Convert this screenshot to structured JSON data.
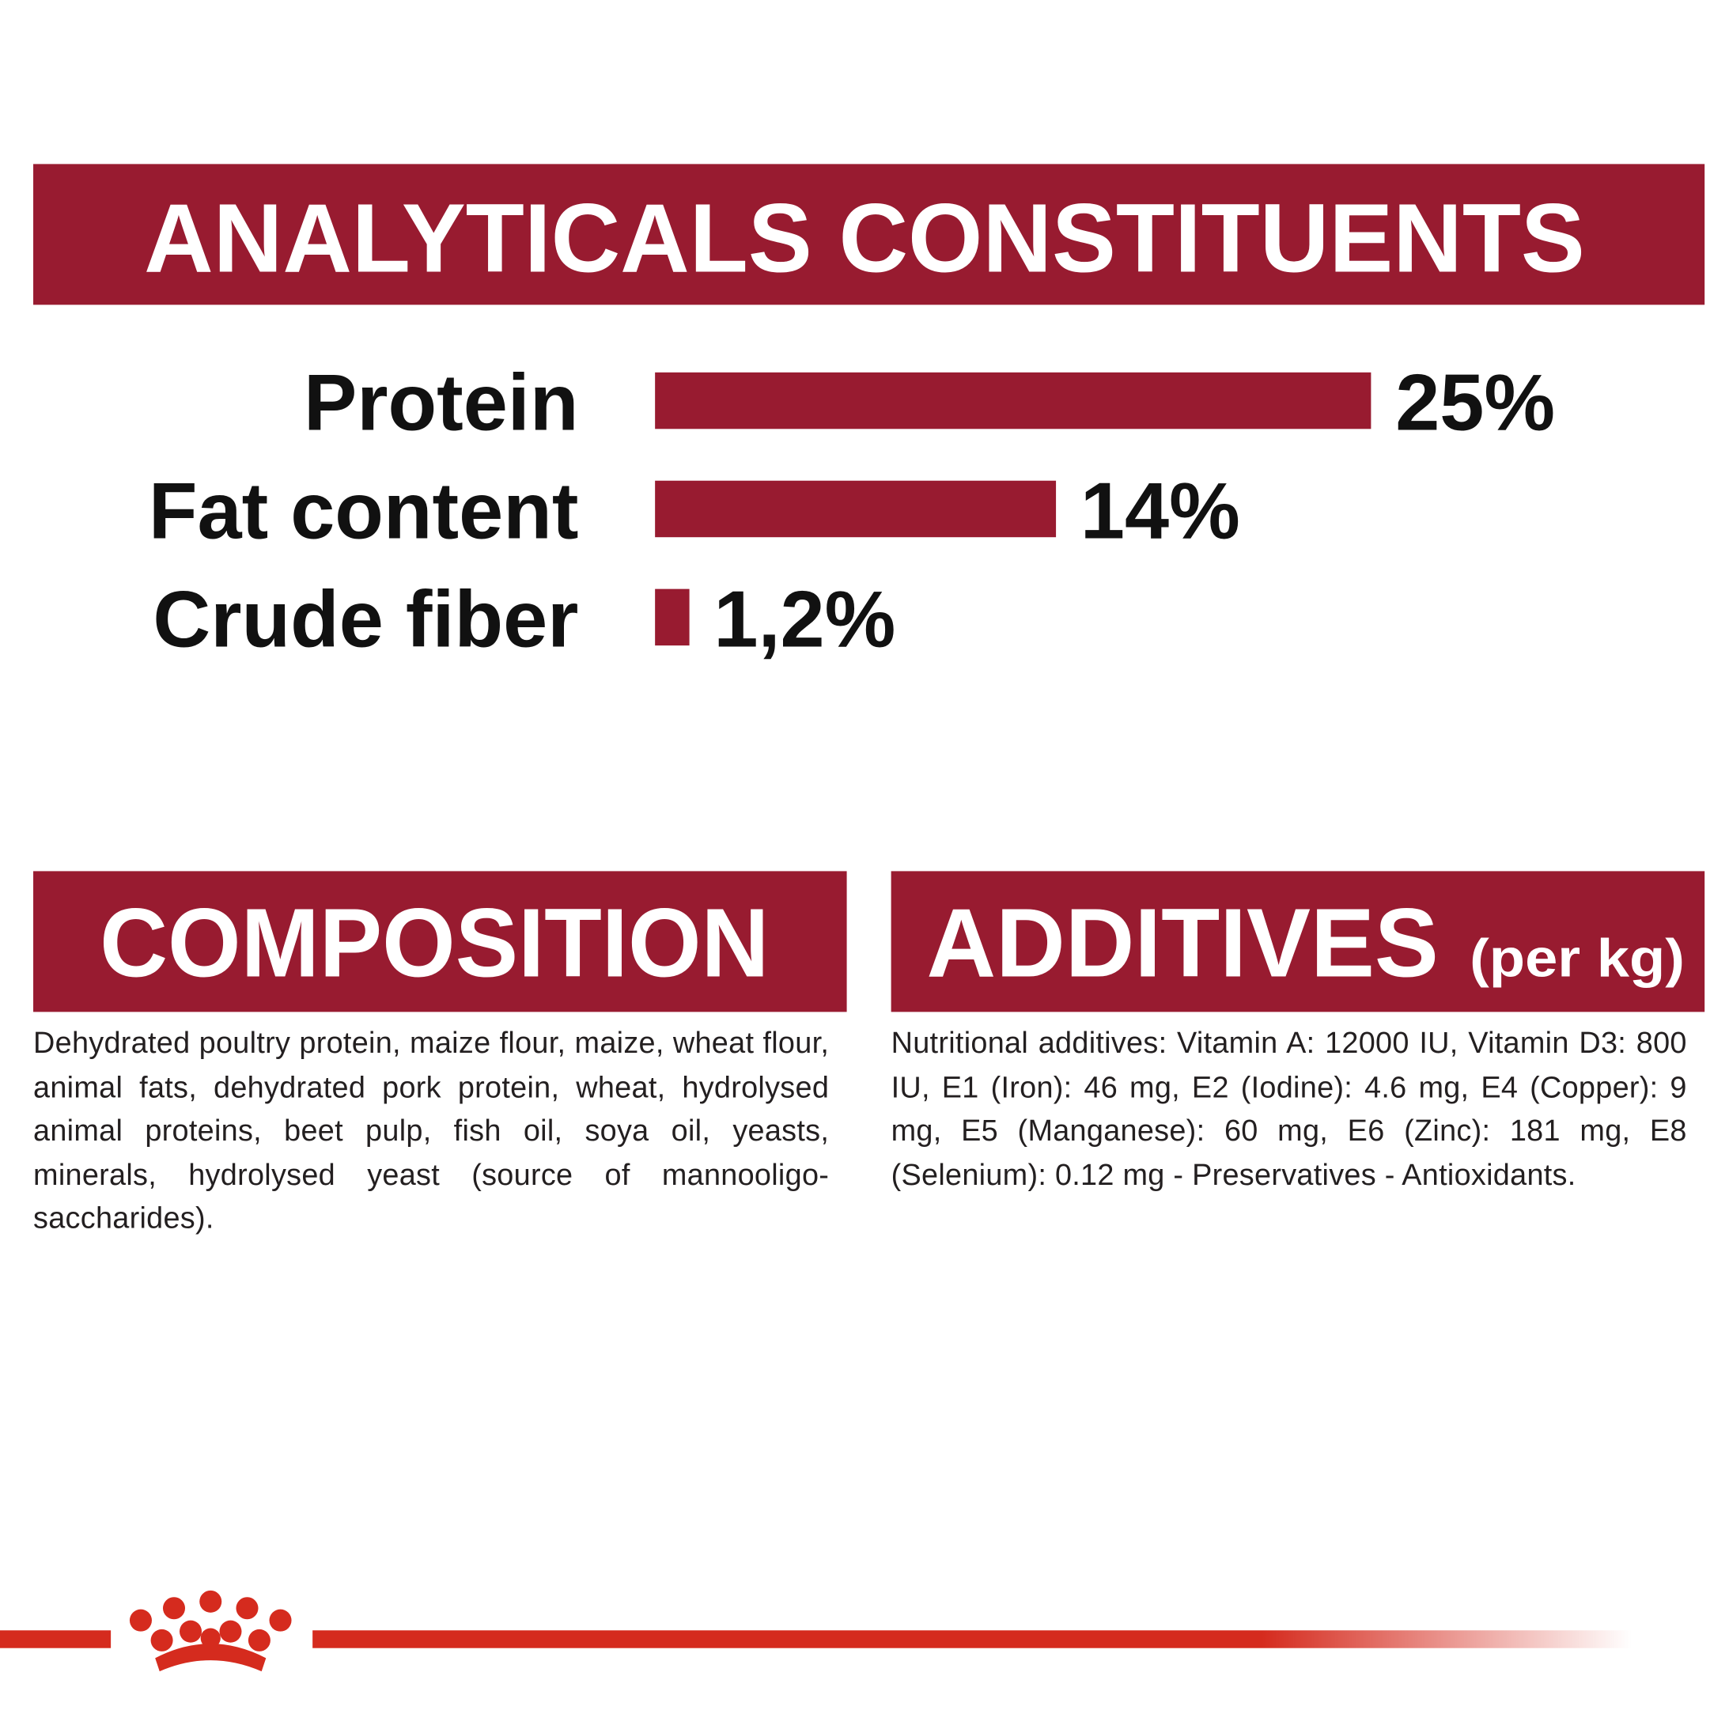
{
  "header": {
    "title": "ANALYTICALS CONSTITUENTS"
  },
  "chart_data": {
    "type": "bar",
    "orientation": "horizontal",
    "color": "#981b30",
    "categories": [
      "Protein",
      "Fat content",
      "Crude fiber"
    ],
    "values": [
      25,
      14,
      1.2
    ],
    "value_labels": [
      "25%",
      "14%",
      "1,2%"
    ]
  },
  "composition": {
    "title": "COMPOSITION",
    "text": "Dehydrated poultry protein, maize flour, maize, wheat flour, animal fats, dehydrated pork protein, wheat, hydrolysed animal proteins, beet pulp, fish oil, soya oil, yeasts, minerals, hydrolysed yeast (source of mannooligo-saccharides)."
  },
  "additives": {
    "title": "ADDITIVES",
    "unit": "(per kg)",
    "text": "Nutritional additives: Vitamin A: 12000 IU, Vitamin D3: 800 IU, E1 (Iron): 46 mg, E2 (Iodine): 4.6 mg, E4 (Copper): 9 mg, E5 (Manganese): 60 mg, E6 (Zinc): 181 mg, E8 (Selenium): 0.12 mg - Preservatives - Antioxidants."
  }
}
